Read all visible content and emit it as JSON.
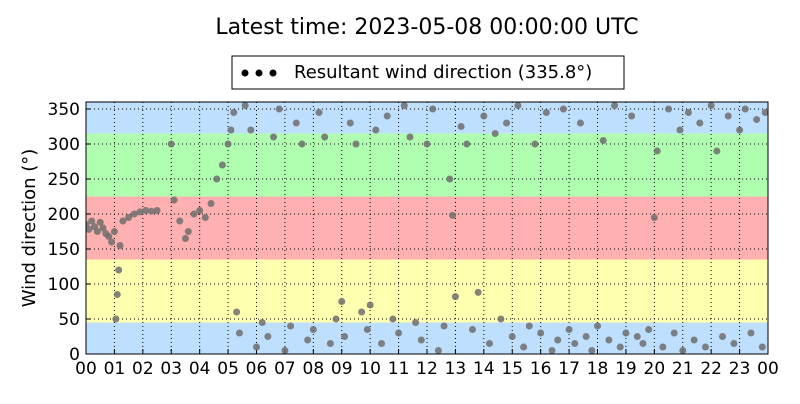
{
  "chart_data": {
    "type": "scatter",
    "title": "Latest time: 2023-05-08 00:00:00 UTC",
    "ylabel": "Wind direction (°)",
    "legend_location": "upper center",
    "grid": true,
    "xlim": [
      0,
      24
    ],
    "xticks": [
      {
        "value": 0,
        "label": "00"
      },
      {
        "value": 1,
        "label": "01"
      },
      {
        "value": 2,
        "label": "02"
      },
      {
        "value": 3,
        "label": "03"
      },
      {
        "value": 4,
        "label": "04"
      },
      {
        "value": 5,
        "label": "05"
      },
      {
        "value": 6,
        "label": "06"
      },
      {
        "value": 7,
        "label": "07"
      },
      {
        "value": 8,
        "label": "08"
      },
      {
        "value": 9,
        "label": "09"
      },
      {
        "value": 10,
        "label": "10"
      },
      {
        "value": 11,
        "label": "11"
      },
      {
        "value": 12,
        "label": "12"
      },
      {
        "value": 13,
        "label": "13"
      },
      {
        "value": 14,
        "label": "14"
      },
      {
        "value": 15,
        "label": "15"
      },
      {
        "value": 16,
        "label": "16"
      },
      {
        "value": 17,
        "label": "17"
      },
      {
        "value": 18,
        "label": "18"
      },
      {
        "value": 19,
        "label": "19"
      },
      {
        "value": 20,
        "label": "20"
      },
      {
        "value": 21,
        "label": "21"
      },
      {
        "value": 22,
        "label": "22"
      },
      {
        "value": 23,
        "label": "23"
      },
      {
        "value": 24,
        "label": "00"
      }
    ],
    "ylim": [
      0,
      360
    ],
    "yticks": [
      0,
      50,
      100,
      150,
      200,
      250,
      300,
      350
    ],
    "bands": [
      {
        "from": 0,
        "to": 45,
        "color": "#bfdfff"
      },
      {
        "from": 45,
        "to": 135,
        "color": "#ffffb0"
      },
      {
        "from": 135,
        "to": 225,
        "color": "#ffb0b0"
      },
      {
        "from": 225,
        "to": 315,
        "color": "#b0ffb0"
      },
      {
        "from": 315,
        "to": 360,
        "color": "#bfdfff"
      }
    ],
    "series": [
      {
        "name": "Resultant wind direction (335.8°)",
        "color": "#6e6e6e",
        "x": [
          0.0,
          0.1,
          0.2,
          0.3,
          0.4,
          0.5,
          0.6,
          0.7,
          0.8,
          0.9,
          1.0,
          1.05,
          1.1,
          1.15,
          1.2,
          1.3,
          1.5,
          1.7,
          1.9,
          2.1,
          2.3,
          2.5,
          3.0,
          3.1,
          3.3,
          3.5,
          3.6,
          3.8,
          4.0,
          4.2,
          4.4,
          4.6,
          4.8,
          5.0,
          5.1,
          5.2,
          5.3,
          5.4,
          5.6,
          5.8,
          6.0,
          6.2,
          6.4,
          6.6,
          6.8,
          7.0,
          7.2,
          7.4,
          7.6,
          7.8,
          8.0,
          8.2,
          8.4,
          8.6,
          8.8,
          9.0,
          9.1,
          9.3,
          9.5,
          9.7,
          9.9,
          10.0,
          10.2,
          10.4,
          10.6,
          10.8,
          11.0,
          11.2,
          11.4,
          11.6,
          11.8,
          12.0,
          12.2,
          12.4,
          12.6,
          12.8,
          12.9,
          13.0,
          13.2,
          13.4,
          13.6,
          13.8,
          14.0,
          14.2,
          14.4,
          14.6,
          14.8,
          15.0,
          15.2,
          15.4,
          15.6,
          15.8,
          16.0,
          16.2,
          16.4,
          16.6,
          16.8,
          17.0,
          17.2,
          17.4,
          17.6,
          17.8,
          18.0,
          18.2,
          18.4,
          18.6,
          18.8,
          19.0,
          19.2,
          19.4,
          19.6,
          19.8,
          20.0,
          20.1,
          20.3,
          20.5,
          20.7,
          20.9,
          21.0,
          21.2,
          21.4,
          21.6,
          21.8,
          22.0,
          22.2,
          22.4,
          22.6,
          22.8,
          23.0,
          23.2,
          23.4,
          23.6,
          23.8,
          23.9
        ],
        "values": [
          185,
          178,
          190,
          182,
          175,
          188,
          180,
          172,
          168,
          160,
          175,
          50,
          85,
          120,
          155,
          190,
          195,
          200,
          203,
          205,
          204,
          205,
          300,
          220,
          190,
          165,
          175,
          200,
          205,
          195,
          215,
          250,
          270,
          300,
          320,
          345,
          60,
          30,
          355,
          320,
          10,
          45,
          25,
          310,
          350,
          5,
          40,
          330,
          300,
          20,
          35,
          345,
          310,
          15,
          50,
          75,
          25,
          330,
          300,
          60,
          35,
          70,
          320,
          15,
          340,
          50,
          30,
          355,
          310,
          45,
          20,
          300,
          350,
          5,
          40,
          250,
          198,
          82,
          325,
          300,
          35,
          88,
          340,
          15,
          315,
          50,
          330,
          25,
          355,
          10,
          40,
          300,
          30,
          345,
          5,
          20,
          350,
          35,
          15,
          330,
          25,
          5,
          40,
          305,
          20,
          355,
          10,
          30,
          340,
          25,
          15,
          35,
          195,
          290,
          10,
          350,
          30,
          320,
          5,
          345,
          20,
          330,
          10,
          355,
          290,
          25,
          340,
          15,
          320,
          350,
          30,
          335,
          10,
          345
        ]
      }
    ]
  }
}
